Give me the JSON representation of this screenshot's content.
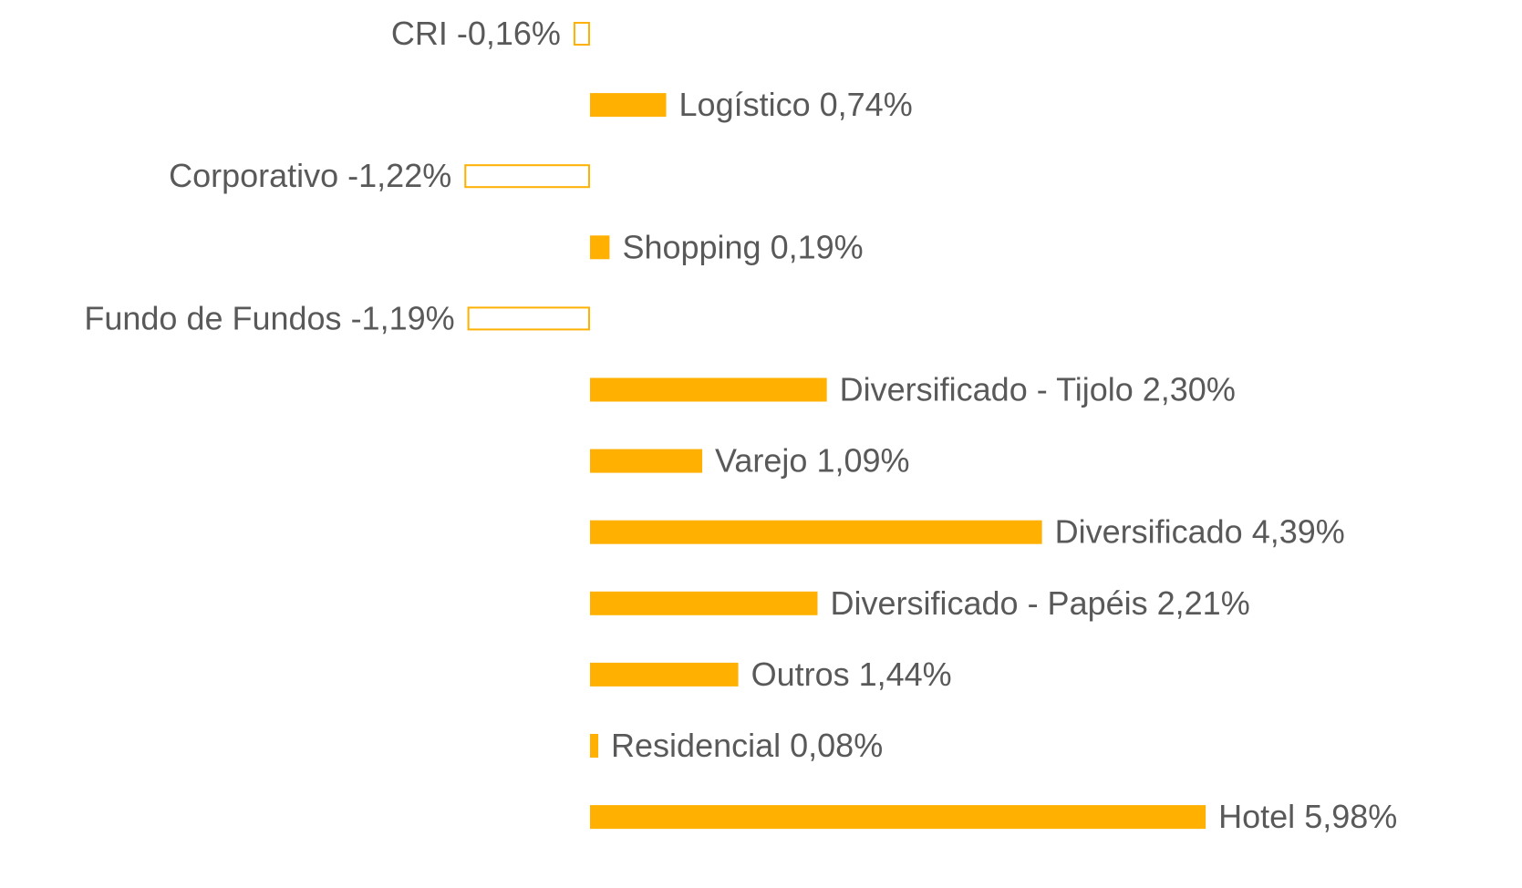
{
  "chart_data": {
    "type": "bar",
    "orientation": "horizontal",
    "color": "#FFB000",
    "categories": [
      "CRI",
      "Logístico",
      "Corporativo",
      "Shopping",
      "Fundo de Fundos",
      "Diversificado - Tijolo",
      "Varejo",
      "Diversificado",
      "Diversificado - Papéis",
      "Outros",
      "Residencial",
      "Hotel"
    ],
    "values": [
      -0.16,
      0.74,
      -1.22,
      0.19,
      -1.19,
      2.3,
      1.09,
      4.39,
      2.21,
      1.44,
      0.08,
      5.98
    ],
    "value_labels": [
      "-0,16%",
      "0,74%",
      "-1,22%",
      "0,19%",
      "-1,19%",
      "2,30%",
      "1,09%",
      "4,39%",
      "2,21%",
      "1,44%",
      "0,08%",
      "5,98%"
    ]
  }
}
